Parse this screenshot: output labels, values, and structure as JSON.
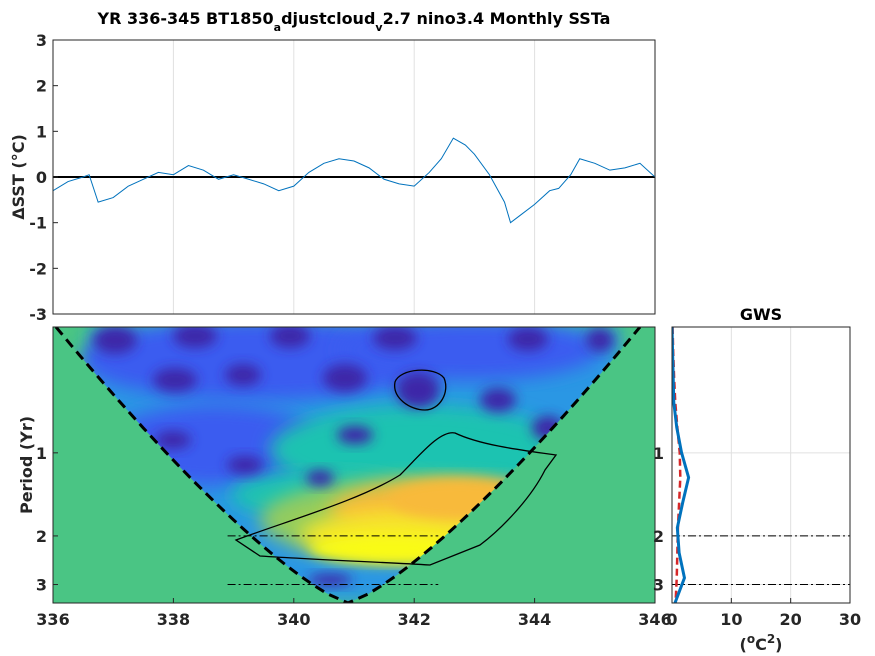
{
  "chart_data": [
    {
      "type": "line",
      "title_parts": [
        "YR 336-345 BT1850",
        "a",
        "djustcloud",
        "v",
        "2.7 nino3.4 Monthly SSTa"
      ],
      "ylabel": "ΔSST (°C)",
      "xlim": [
        336,
        346
      ],
      "ylim": [
        -3,
        3
      ],
      "yticks": [
        "-3",
        "-2",
        "-1",
        "0",
        "1",
        "2",
        "3"
      ],
      "grid": true,
      "line_color": "#0072bd",
      "x": [
        336.0,
        336.25,
        336.5,
        336.6,
        336.75,
        337.0,
        337.25,
        337.5,
        337.75,
        338.0,
        338.25,
        338.5,
        338.75,
        339.0,
        339.25,
        339.5,
        339.75,
        340.0,
        340.25,
        340.5,
        340.75,
        341.0,
        341.25,
        341.5,
        341.75,
        342.0,
        342.25,
        342.45,
        342.65,
        342.85,
        343.0,
        343.25,
        343.5,
        343.6,
        343.75,
        344.0,
        344.25,
        344.4,
        344.6,
        344.75,
        345.0,
        345.25,
        345.5,
        345.75,
        346.0
      ],
      "y": [
        -0.3,
        -0.1,
        0.0,
        0.05,
        -0.55,
        -0.45,
        -0.2,
        -0.05,
        0.1,
        0.05,
        0.25,
        0.15,
        -0.05,
        0.05,
        -0.05,
        -0.15,
        -0.3,
        -0.2,
        0.1,
        0.3,
        0.4,
        0.35,
        0.2,
        -0.05,
        -0.15,
        -0.2,
        0.1,
        0.4,
        0.85,
        0.7,
        0.5,
        0.05,
        -0.55,
        -1.0,
        -0.85,
        -0.6,
        -0.3,
        -0.25,
        0.05,
        0.4,
        0.3,
        0.15,
        0.2,
        0.3,
        0.0
      ]
    },
    {
      "type": "heatmap",
      "xlim": [
        336,
        346
      ],
      "xticks": [
        "336",
        "338",
        "340",
        "342",
        "344",
        "346"
      ],
      "ylabel": "Period (Yr)",
      "yticks": [
        "1",
        "2",
        "3"
      ],
      "ylim_period": [
        0.35,
        3.5
      ],
      "y_scale": "log",
      "reference_periods": [
        2,
        3
      ],
      "colormap": [
        "#3e26a8",
        "#3b5cf0",
        "#2c97e4",
        "#1fc3b1",
        "#93cc5f",
        "#f8ba3a",
        "#f6e62b",
        "#f9fb15"
      ],
      "coi_fill": "#4ac584",
      "high_power_region": "warm band near 2-3 yr period, 339-344",
      "significance_contours": 2
    },
    {
      "type": "line",
      "title": "GWS",
      "xlabel_parts": [
        "(",
        "o",
        "C",
        "2",
        ")"
      ],
      "xlim": [
        0,
        30
      ],
      "xticks": [
        "0",
        "10",
        "20",
        "30"
      ],
      "yticks": [
        "1",
        "2",
        "3"
      ],
      "series": [
        {
          "kind": "power",
          "color": "#0072bd",
          "values": [
            0.0,
            0.1,
            0.2,
            0.3,
            0.8,
            1.6,
            2.8,
            1.8,
            0.9,
            1.2,
            2.1,
            0.5
          ]
        },
        {
          "kind": "significance",
          "color": "#d62728",
          "values": [
            0.1,
            0.2,
            0.35,
            0.55,
            0.9,
            1.3,
            1.4,
            1.2,
            1.0,
            0.9,
            0.8,
            0.6
          ]
        }
      ]
    }
  ]
}
